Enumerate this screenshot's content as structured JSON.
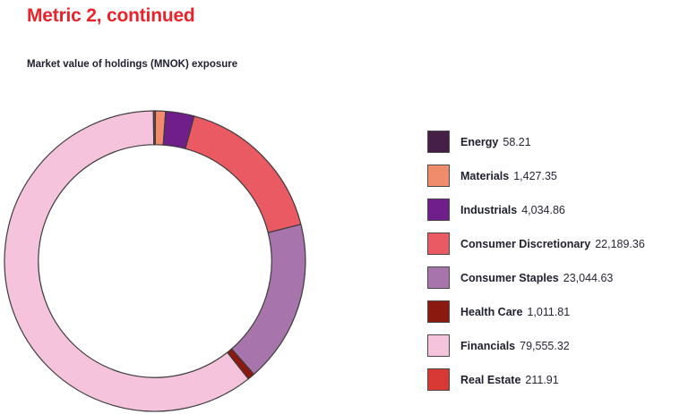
{
  "page": {
    "title": "Metric 2, continued",
    "subtitle": "Market value of holdings (MNOK) exposure"
  },
  "colors": {
    "title_accent": "#ea232b",
    "text": "#1f1f30",
    "background": "#ffffff"
  },
  "chart_data": {
    "type": "pie",
    "subtype": "donut",
    "title": "Market value of holdings (MNOK) exposure",
    "unit": "MNOK",
    "categories": [
      "Energy",
      "Materials",
      "Industrials",
      "Consumer Discretionary",
      "Consumer Staples",
      "Health Care",
      "Financials",
      "Real Estate"
    ],
    "values": [
      58.21,
      1427.35,
      4034.86,
      22189.36,
      23044.63,
      1011.81,
      79555.32,
      211.91
    ],
    "value_labels": [
      "58.21",
      "1,427.35",
      "4,034.86",
      "22,189.36",
      "23,044.63",
      "1,011.81",
      "79,555.32",
      "211.91"
    ],
    "colors": [
      "#451f45",
      "#f08b6c",
      "#6f1e8a",
      "#ea5a63",
      "#a874ac",
      "#8b190f",
      "#f6c3dd",
      "#d93934"
    ],
    "outline_color": "#3c3c3c",
    "start_angle_deg": 0,
    "direction": "clockwise",
    "inner_radius_ratio": 0.775,
    "legend_position": "right",
    "grid": false
  }
}
